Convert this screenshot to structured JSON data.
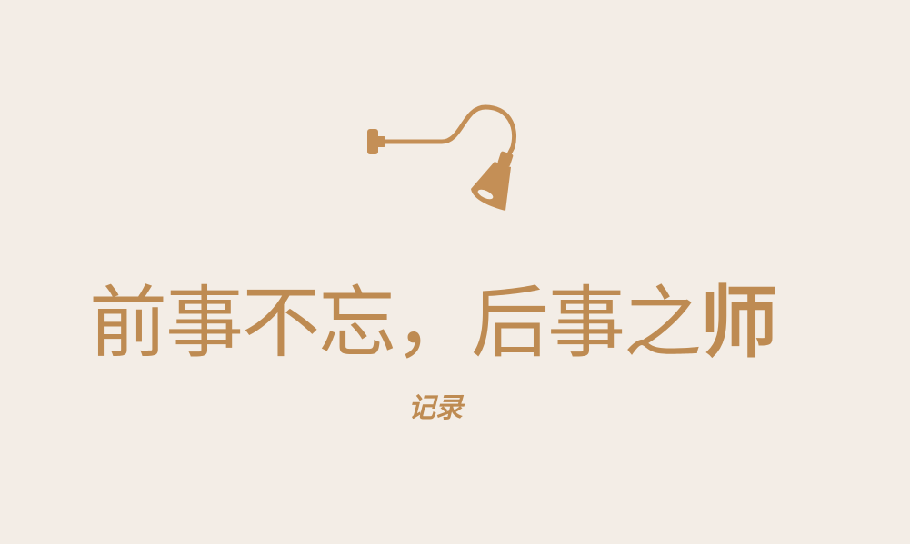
{
  "headline": {
    "part1": "前事不忘，后事之",
    "part2": "师"
  },
  "subtitle": "记录",
  "icon": "wall-lamp-icon",
  "colors": {
    "background": "#f3ede6",
    "accent": "#be8b52"
  }
}
